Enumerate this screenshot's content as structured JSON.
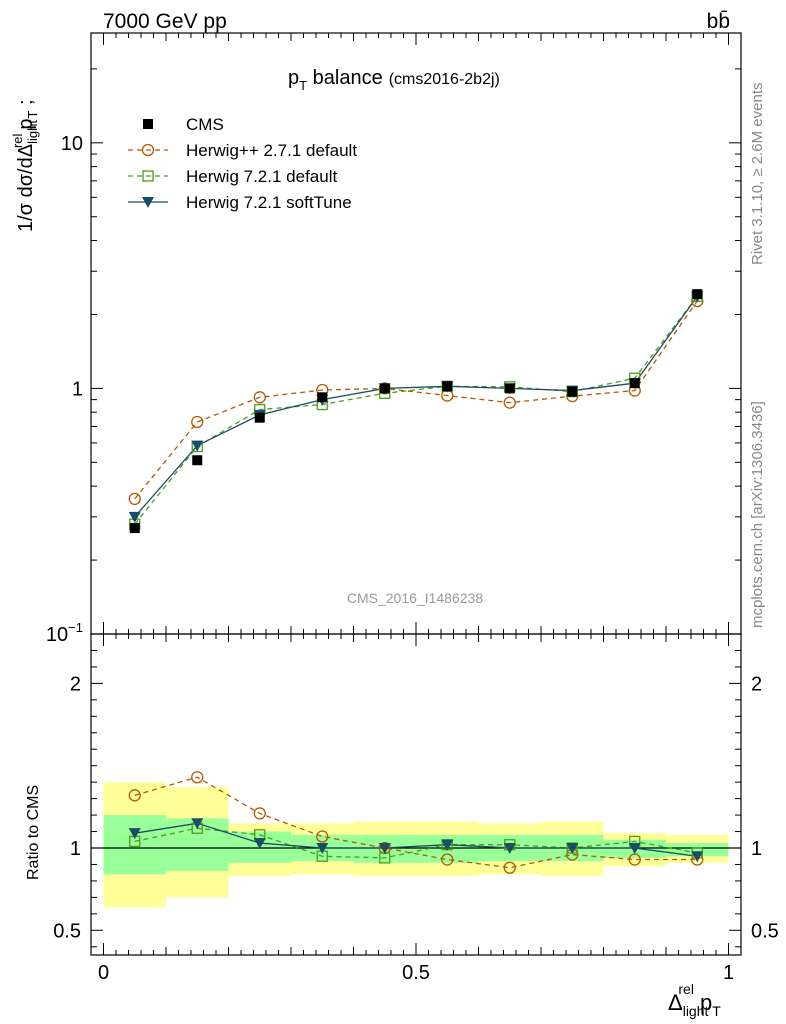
{
  "header": {
    "energy": "7000 GeV pp",
    "process": "bb̄"
  },
  "side_text": {
    "rivet": "Rivet 3.1.10, ≥ 2.6M events",
    "mcplots": "mcplots.cern.ch [arXiv:1306.3436]"
  },
  "plot": {
    "title": "p",
    "title_sub": "T",
    "title_rest": " balance",
    "title_tag": "(cms2016-2b2j)",
    "analysis_label": "CMS_2016_I1486238"
  },
  "axes": {
    "ylabel_main": "1/σ dσ/dΔ",
    "ylabel_sup": "rel",
    "ylabel_sub": "light",
    "ylabel_tail": "p",
    "ylabel_tail_sub": "T",
    "ylabel_tail_end": " ;",
    "ylabel_ratio": "Ratio to CMS",
    "xlabel": "Δ",
    "xlabel_sup": "rel",
    "xlabel_sub": "light",
    "xlabel_tail": "p",
    "xlabel_tail_sub": "T"
  },
  "chart_data": {
    "type": "line",
    "main": {
      "yscale": "log",
      "ylim": [
        0.1,
        28
      ],
      "xlim": [
        -0.02,
        1.02
      ],
      "y_ticks": [
        {
          "value": 0.1,
          "label": "10",
          "sup": "−1"
        },
        {
          "value": 1,
          "label": "1",
          "sup": ""
        },
        {
          "value": 10,
          "label": "10",
          "sup": ""
        }
      ]
    },
    "ratio": {
      "ylim": [
        0.35,
        2.3
      ],
      "y_ticks": [
        {
          "value": 0.5,
          "label": "0.5"
        },
        {
          "value": 1,
          "label": "1"
        },
        {
          "value": 2,
          "label": "2"
        }
      ],
      "bands": {
        "edges": [
          0,
          0.1,
          0.2,
          0.3,
          0.4,
          0.5,
          0.6,
          0.7,
          0.8,
          0.9,
          1.0
        ],
        "yellow": [
          [
            0.64,
            1.4
          ],
          [
            0.7,
            1.37
          ],
          [
            0.83,
            1.15
          ],
          [
            0.84,
            1.15
          ],
          [
            0.83,
            1.16
          ],
          [
            0.83,
            1.16
          ],
          [
            0.84,
            1.15
          ],
          [
            0.83,
            1.16
          ],
          [
            0.89,
            1.09
          ],
          [
            0.91,
            1.08
          ]
        ],
        "green": [
          [
            0.84,
            1.2
          ],
          [
            0.86,
            1.18
          ],
          [
            0.91,
            1.1
          ],
          [
            0.92,
            1.08
          ],
          [
            0.91,
            1.08
          ],
          [
            0.91,
            1.08
          ],
          [
            0.92,
            1.08
          ],
          [
            0.92,
            1.08
          ],
          [
            0.94,
            1.05
          ],
          [
            0.95,
            1.03
          ]
        ]
      }
    },
    "x": [
      0.05,
      0.15,
      0.25,
      0.35,
      0.45,
      0.55,
      0.65,
      0.75,
      0.85,
      0.95
    ],
    "x_ticks": [
      {
        "value": 0,
        "label": "0"
      },
      {
        "value": 0.5,
        "label": "0.5"
      },
      {
        "value": 1,
        "label": "1"
      }
    ],
    "series": [
      {
        "name": "CMS",
        "color": "#000000",
        "marker": "square-filled",
        "values": [
          0.27,
          0.51,
          0.76,
          0.92,
          1.0,
          1.02,
          1.0,
          0.97,
          1.05,
          2.42
        ],
        "ratio": [
          1,
          1,
          1,
          1,
          1,
          1,
          1,
          1,
          1,
          1
        ]
      },
      {
        "name": "Herwig++ 2.7.1 default",
        "color": "#b35900",
        "marker": "circle-open",
        "dash": "dashed",
        "values": [
          0.355,
          0.73,
          0.92,
          0.985,
          1.0,
          0.935,
          0.875,
          0.93,
          0.98,
          2.27
        ],
        "ratio": [
          1.32,
          1.43,
          1.21,
          1.07,
          1.0,
          0.93,
          0.88,
          0.96,
          0.93,
          0.93
        ]
      },
      {
        "name": "Herwig 7.2.1 default",
        "color": "#4a9e1a",
        "marker": "square-open",
        "dash": "dashed",
        "values": [
          0.28,
          0.58,
          0.82,
          0.86,
          0.955,
          1.02,
          1.015,
          0.97,
          1.1,
          2.37
        ],
        "ratio": [
          1.04,
          1.12,
          1.08,
          0.95,
          0.94,
          1.02,
          1.02,
          1.0,
          1.04,
          0.97
        ]
      },
      {
        "name": "Herwig 7.2.1 softTune",
        "color": "#1a4d66",
        "marker": "triangle-down-filled",
        "dash": "solid",
        "values": [
          0.3,
          0.585,
          0.78,
          0.9,
          1.0,
          1.02,
          1.0,
          0.98,
          1.05,
          2.37
        ],
        "ratio": [
          1.09,
          1.15,
          1.03,
          1.0,
          1.0,
          1.02,
          1.0,
          1.0,
          1.0,
          0.95
        ]
      }
    ]
  }
}
